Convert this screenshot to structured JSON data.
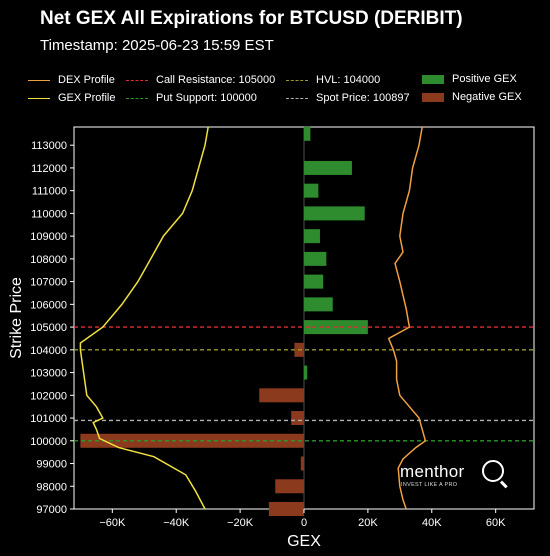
{
  "header": {
    "title": "Net GEX All Expirations for BTCUSD (DERIBIT)",
    "subtitle": "Timestamp: 2025-06-23 15:59 EST"
  },
  "legend": {
    "dex_profile": "DEX Profile",
    "gex_profile": "GEX Profile",
    "call_resistance": "Call Resistance: 105000",
    "put_support": "Put Support: 100000",
    "hvl": "HVL: 104000",
    "spot_price": "Spot Price: 100897",
    "positive_gex": "Positive GEX",
    "negative_gex": "Negative GEX"
  },
  "brand": {
    "name": "menthor",
    "tagline": "INVEST LIKE A PRO"
  },
  "colors": {
    "dex": "#f0a040",
    "gex": "#f0e040",
    "positive": "#2e8b2e",
    "negative": "#8b3a1e",
    "call_resistance": "#e03030",
    "put_support": "#2a9a2a",
    "hvl": "#9a9a30",
    "spot": "#b0b0b0"
  },
  "chart_data": {
    "type": "bar",
    "orientation": "horizontal",
    "xlabel": "GEX",
    "ylabel": "Strike Price",
    "xlim": [
      -72000,
      72000
    ],
    "ylim": [
      97000,
      113800
    ],
    "xticks": [
      -60000,
      -40000,
      -20000,
      0,
      20000,
      40000,
      60000
    ],
    "xtick_labels": [
      "−60K",
      "−40K",
      "−20K",
      "0",
      "20K",
      "40K",
      "60K"
    ],
    "yticks": [
      97000,
      98000,
      99000,
      100000,
      101000,
      102000,
      103000,
      104000,
      105000,
      106000,
      107000,
      108000,
      109000,
      110000,
      111000,
      112000,
      113000
    ],
    "strikes": [
      97000,
      98000,
      99000,
      100000,
      101000,
      102000,
      103000,
      104000,
      105000,
      106000,
      107000,
      108000,
      109000,
      110000,
      111000,
      112000,
      113000,
      113500
    ],
    "gex_values": [
      -11000,
      -9000,
      -1000,
      -70000,
      -4000,
      -14000,
      1000,
      -3000,
      20000,
      9000,
      6000,
      7000,
      5000,
      19000,
      4500,
      15000,
      0,
      2000
    ],
    "levels": {
      "call_resistance": 105000,
      "put_support": 100000,
      "hvl": 104000,
      "spot_price": 100897
    },
    "dex_profile": [
      [
        32000,
        97000
      ],
      [
        31000,
        97400
      ],
      [
        30000,
        98000
      ],
      [
        29500,
        98800
      ],
      [
        31000,
        99200
      ],
      [
        35000,
        99700
      ],
      [
        38000,
        100000
      ],
      [
        37000,
        100500
      ],
      [
        36000,
        101000
      ],
      [
        33000,
        101500
      ],
      [
        30000,
        102000
      ],
      [
        29000,
        102700
      ],
      [
        29000,
        103500
      ],
      [
        28000,
        104000
      ],
      [
        26500,
        104500
      ],
      [
        33000,
        105000
      ],
      [
        32000,
        105800
      ],
      [
        30000,
        107000
      ],
      [
        28500,
        107800
      ],
      [
        31000,
        108300
      ],
      [
        30000,
        109000
      ],
      [
        31000,
        110000
      ],
      [
        33000,
        111000
      ],
      [
        34000,
        112000
      ],
      [
        36000,
        113000
      ],
      [
        37000,
        113800
      ]
    ],
    "gex_profile": [
      [
        -31000,
        97000
      ],
      [
        -34000,
        97800
      ],
      [
        -37000,
        98500
      ],
      [
        -47000,
        99300
      ],
      [
        -58000,
        99700
      ],
      [
        -64000,
        100100
      ],
      [
        -65000,
        100500
      ],
      [
        -66000,
        100800
      ],
      [
        -63000,
        101000
      ],
      [
        -65000,
        101500
      ],
      [
        -68000,
        102000
      ],
      [
        -69000,
        103000
      ],
      [
        -70000,
        104000
      ],
      [
        -70000,
        104300
      ],
      [
        -63000,
        105000
      ],
      [
        -57000,
        106000
      ],
      [
        -52000,
        107000
      ],
      [
        -48000,
        108000
      ],
      [
        -44000,
        109000
      ],
      [
        -38000,
        110000
      ],
      [
        -35000,
        111000
      ],
      [
        -33000,
        112000
      ],
      [
        -31000,
        113000
      ],
      [
        -30000,
        113800
      ]
    ]
  }
}
